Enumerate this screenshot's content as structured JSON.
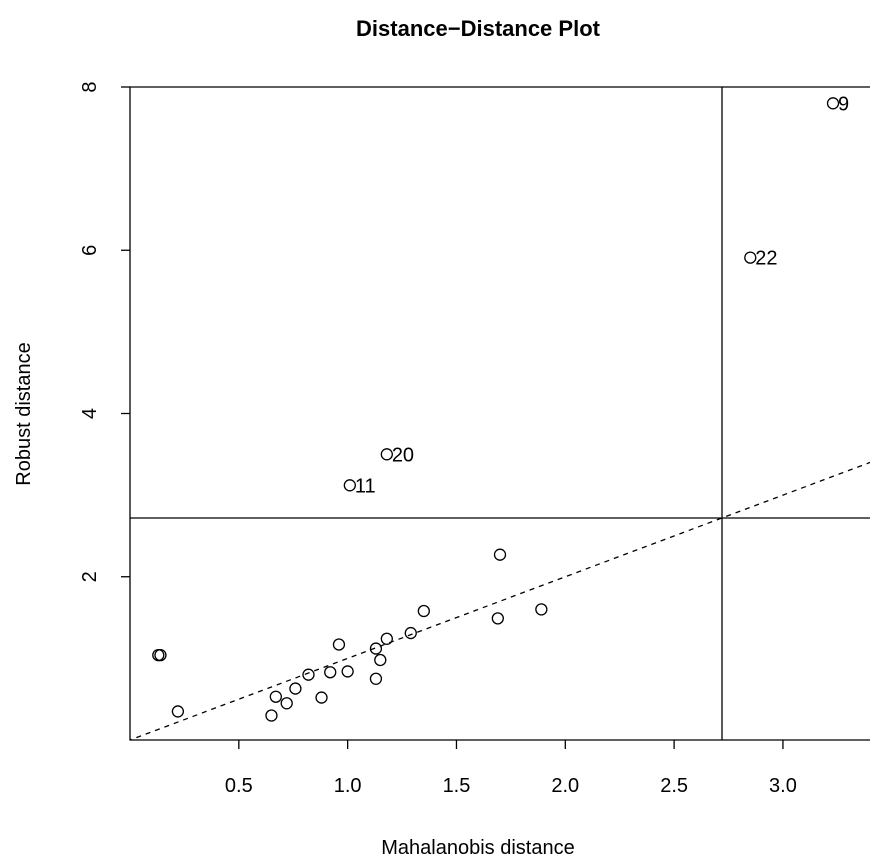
{
  "chart_data": {
    "type": "scatter",
    "title": "Distance−Distance Plot",
    "xlabel": "Mahalanobis distance",
    "ylabel": "Robust distance",
    "xlim": [
      0.0,
      3.4
    ],
    "ylim": [
      0.0,
      8.0
    ],
    "x_ticks": [
      "0.5",
      "1.0",
      "1.5",
      "2.0",
      "2.5",
      "3.0"
    ],
    "x_tick_values": [
      0.5,
      1.0,
      1.5,
      2.0,
      2.5,
      3.0
    ],
    "y_ticks": [
      "2",
      "4",
      "6",
      "8"
    ],
    "y_tick_values": [
      2,
      4,
      6,
      8
    ],
    "grid": false,
    "cutoff": 2.72,
    "reference_line": {
      "slope": 1,
      "intercept": 0,
      "style": "dashed"
    },
    "points": [
      {
        "x": 0.13,
        "y": 1.04,
        "label": ""
      },
      {
        "x": 0.14,
        "y": 1.04,
        "label": ""
      },
      {
        "x": 0.22,
        "y": 0.35,
        "label": ""
      },
      {
        "x": 0.65,
        "y": 0.3,
        "label": ""
      },
      {
        "x": 0.67,
        "y": 0.53,
        "label": ""
      },
      {
        "x": 0.72,
        "y": 0.45,
        "label": ""
      },
      {
        "x": 0.76,
        "y": 0.63,
        "label": ""
      },
      {
        "x": 0.82,
        "y": 0.8,
        "label": ""
      },
      {
        "x": 0.88,
        "y": 0.52,
        "label": ""
      },
      {
        "x": 0.92,
        "y": 0.83,
        "label": ""
      },
      {
        "x": 0.96,
        "y": 1.17,
        "label": ""
      },
      {
        "x": 1.0,
        "y": 0.84,
        "label": ""
      },
      {
        "x": 1.13,
        "y": 0.75,
        "label": ""
      },
      {
        "x": 1.13,
        "y": 1.12,
        "label": ""
      },
      {
        "x": 1.15,
        "y": 0.98,
        "label": ""
      },
      {
        "x": 1.18,
        "y": 1.24,
        "label": ""
      },
      {
        "x": 1.29,
        "y": 1.31,
        "label": ""
      },
      {
        "x": 1.35,
        "y": 1.58,
        "label": ""
      },
      {
        "x": 1.69,
        "y": 1.49,
        "label": ""
      },
      {
        "x": 1.7,
        "y": 2.27,
        "label": ""
      },
      {
        "x": 1.89,
        "y": 1.6,
        "label": ""
      },
      {
        "x": 1.01,
        "y": 3.12,
        "label": "11"
      },
      {
        "x": 1.18,
        "y": 3.5,
        "label": "20"
      },
      {
        "x": 2.85,
        "y": 5.91,
        "label": "22"
      },
      {
        "x": 3.23,
        "y": 7.8,
        "label": "9"
      }
    ]
  }
}
